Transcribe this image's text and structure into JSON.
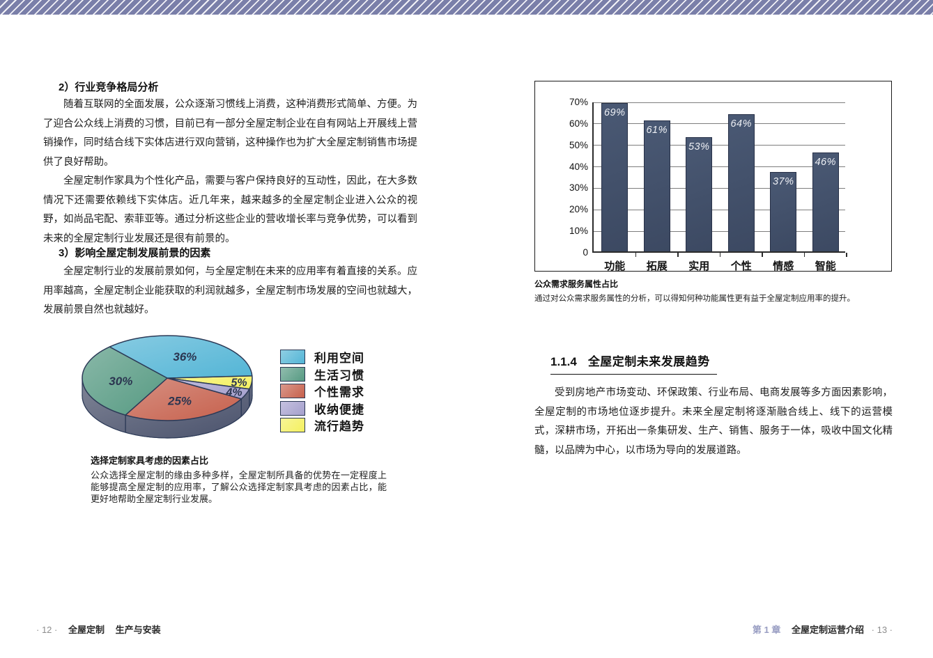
{
  "band_color": "#7A7FA9",
  "left_page": {
    "heading_2": "2）行业竞争格局分析",
    "para_1": "随着互联网的全面发展，公众逐渐习惯线上消费，这种消费形式简单、方便。为了迎合公众线上消费的习惯，目前已有一部分全屋定制企业在自有网站上开展线上营销操作，同时结合线下实体店进行双向营销，这种操作也为扩大全屋定制销售市场提供了良好帮助。",
    "para_2": "全屋定制作家具为个性化产品，需要与客户保持良好的互动性，因此，在大多数情况下还需要依赖线下实体店。近几年来，越来越多的全屋定制企业进入公众的视野，如尚品宅配、索菲亚等。通过分析这些企业的营收增长率与竞争优势，可以看到未来的全屋定制行业发展还是很有前景的。",
    "heading_3": "3）影响全屋定制发展前景的因素",
    "para_3": "全屋定制行业的发展前景如何，与全屋定制在未来的应用率有着直接的关系。应用率越高，全屋定制企业能获取的利润就越多，全屋定制市场发展的空间也就越大，发展前景自然也就越好。",
    "pie_caption_title": "选择定制家具考虑的因素占比",
    "pie_caption_body": "公众选择全屋定制的缘由多种多样，全屋定制所具备的优势在一定程度上能够提高全屋定制的应用率，了解公众选择定制家具考虑的因素占比，能更好地帮助全屋定制行业发展。",
    "footer": {
      "page_num": "· 12 ·",
      "book_title": "全屋定制",
      "part_title": "生产与安装"
    }
  },
  "right_page": {
    "bar_caption_title": "公众需求服务属性占比",
    "bar_caption_body": "通过对公众需求服务属性的分析，可以得知何种功能属性更有益于全屋定制应用率的提升。",
    "section_no": "1.1.4",
    "section_title": "全屋定制未来发展趋势",
    "para": "受到房地产市场变动、环保政策、行业布局、电商发展等多方面因素影响，全屋定制的市场地位逐步提升。未来全屋定制将逐渐融合线上、线下的运营模式，深耕市场，开拓出一条集研发、生产、销售、服务于一体，吸收中国文化精髓，以品牌为中心，以市场为导向的发展道路。",
    "footer": {
      "chapter": "第 1 章",
      "chapter_title": "全屋定制运营介绍",
      "page_num": "· 13 ·"
    }
  },
  "chart_data": [
    {
      "type": "bar",
      "title": "公众需求服务属性占比",
      "categories": [
        "功能",
        "拓展",
        "实用",
        "个性",
        "情感",
        "智能"
      ],
      "values": [
        69,
        61,
        53,
        64,
        37,
        46
      ],
      "unit": "%",
      "value_labels": [
        "69%",
        "61%",
        "53%",
        "64%",
        "37%",
        "46%"
      ],
      "ylim": [
        0,
        70
      ],
      "ytick_labels": [
        "0",
        "10%",
        "20%",
        "30%",
        "40%",
        "50%",
        "60%",
        "70%"
      ],
      "grid": true,
      "bar_color": "#3F4C66",
      "value_label_color": "#EEF0F5"
    },
    {
      "type": "pie",
      "style": "3d",
      "title": "选择定制家具考虑的因素占比",
      "legend_position": "right",
      "slices": [
        {
          "label": "利用空间",
          "value": 36,
          "pct_label": "36%",
          "color": "#53B5D6"
        },
        {
          "label": "生活习惯",
          "value": 30,
          "pct_label": "30%",
          "color": "#569A82"
        },
        {
          "label": "个性需求",
          "value": 25,
          "pct_label": "25%",
          "color": "#C6604C"
        },
        {
          "label": "收纳便捷",
          "value": 4,
          "pct_label": "4%",
          "color": "#A5A0CD"
        },
        {
          "label": "流行趋势",
          "value": 5,
          "pct_label": "5%",
          "color": "#F4F05F"
        }
      ],
      "rim_color": "#49516B",
      "outline_color": "#2C3A57"
    }
  ]
}
